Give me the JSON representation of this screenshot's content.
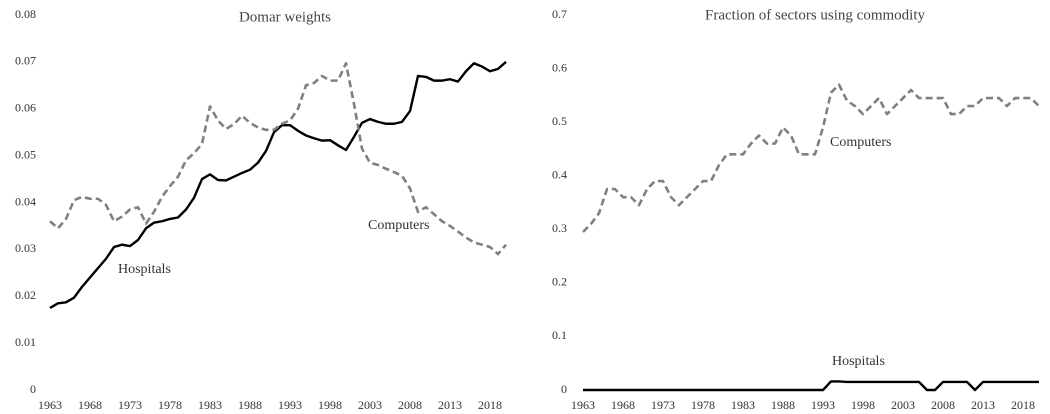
{
  "chart_data": [
    {
      "type": "line",
      "title": "Domar weights",
      "x": [
        1963,
        1964,
        1965,
        1966,
        1967,
        1968,
        1969,
        1970,
        1971,
        1972,
        1973,
        1974,
        1975,
        1976,
        1977,
        1978,
        1979,
        1980,
        1981,
        1982,
        1983,
        1984,
        1985,
        1986,
        1987,
        1988,
        1989,
        1990,
        1991,
        1992,
        1993,
        1994,
        1995,
        1996,
        1997,
        1998,
        1999,
        2000,
        2001,
        2002,
        2003,
        2004,
        2005,
        2006,
        2007,
        2008,
        2009,
        2010,
        2011,
        2012,
        2013,
        2014,
        2015,
        2016,
        2017,
        2018,
        2019,
        2020
      ],
      "xlim": [
        1963,
        2020
      ],
      "xticks": [
        1963,
        1968,
        1973,
        1978,
        1983,
        1988,
        1993,
        1998,
        2003,
        2008,
        2013,
        2018
      ],
      "ylim": [
        0,
        0.08
      ],
      "yticks": [
        0,
        0.01,
        0.02,
        0.03,
        0.04,
        0.05,
        0.06,
        0.07,
        0.08
      ],
      "series": [
        {
          "name": "Hospitals",
          "color": "#000000",
          "dashed": false,
          "values": [
            0.0175,
            0.0185,
            0.0187,
            0.0197,
            0.022,
            0.024,
            0.026,
            0.028,
            0.0305,
            0.031,
            0.0307,
            0.032,
            0.0345,
            0.0357,
            0.036,
            0.0365,
            0.0368,
            0.0385,
            0.041,
            0.045,
            0.046,
            0.0448,
            0.0447,
            0.0455,
            0.0463,
            0.047,
            0.0485,
            0.051,
            0.055,
            0.0565,
            0.0565,
            0.0553,
            0.0543,
            0.0537,
            0.0532,
            0.0533,
            0.0522,
            0.0512,
            0.054,
            0.057,
            0.0578,
            0.0572,
            0.0568,
            0.0568,
            0.0572,
            0.0595,
            0.067,
            0.0668,
            0.066,
            0.066,
            0.0663,
            0.0658,
            0.068,
            0.0697,
            0.069,
            0.068,
            0.0685,
            0.07
          ]
        },
        {
          "name": "Computers",
          "color": "#808080",
          "dashed": true,
          "values": [
            0.036,
            0.0345,
            0.0365,
            0.0405,
            0.0412,
            0.0408,
            0.0408,
            0.0395,
            0.036,
            0.037,
            0.0385,
            0.039,
            0.0355,
            0.038,
            0.0412,
            0.0435,
            0.0455,
            0.049,
            0.0505,
            0.0525,
            0.0605,
            0.0575,
            0.0557,
            0.0567,
            0.0585,
            0.057,
            0.056,
            0.0555,
            0.0555,
            0.0568,
            0.0575,
            0.06,
            0.065,
            0.0655,
            0.067,
            0.066,
            0.066,
            0.0697,
            0.061,
            0.0515,
            0.0485,
            0.048,
            0.0472,
            0.0465,
            0.0457,
            0.043,
            0.038,
            0.039,
            0.0375,
            0.036,
            0.035,
            0.0338,
            0.0325,
            0.0315,
            0.031,
            0.0305,
            0.029,
            0.031
          ]
        }
      ]
    },
    {
      "type": "line",
      "title": "Fraction of sectors using commodity",
      "x": [
        1963,
        1964,
        1965,
        1966,
        1967,
        1968,
        1969,
        1970,
        1971,
        1972,
        1973,
        1974,
        1975,
        1976,
        1977,
        1978,
        1979,
        1980,
        1981,
        1982,
        1983,
        1984,
        1985,
        1986,
        1987,
        1988,
        1989,
        1990,
        1991,
        1992,
        1993,
        1994,
        1995,
        1996,
        1997,
        1998,
        1999,
        2000,
        2001,
        2002,
        2003,
        2004,
        2005,
        2006,
        2007,
        2008,
        2009,
        2010,
        2011,
        2012,
        2013,
        2014,
        2015,
        2016,
        2017,
        2018,
        2019,
        2020
      ],
      "xlim": [
        1963,
        2020
      ],
      "xticks": [
        1963,
        1968,
        1973,
        1978,
        1983,
        1988,
        1993,
        1998,
        2003,
        2008,
        2013,
        2018
      ],
      "ylim": [
        0,
        0.7
      ],
      "yticks": [
        0,
        0.1,
        0.2,
        0.3,
        0.4,
        0.5,
        0.6,
        0.7
      ],
      "series": [
        {
          "name": "Computers",
          "color": "#808080",
          "dashed": true,
          "values": [
            0.295,
            0.31,
            0.33,
            0.375,
            0.375,
            0.36,
            0.36,
            0.345,
            0.375,
            0.39,
            0.39,
            0.36,
            0.345,
            0.36,
            0.375,
            0.39,
            0.39,
            0.42,
            0.44,
            0.44,
            0.44,
            0.46,
            0.475,
            0.46,
            0.46,
            0.49,
            0.475,
            0.44,
            0.44,
            0.44,
            0.49,
            0.555,
            0.57,
            0.54,
            0.53,
            0.515,
            0.53,
            0.545,
            0.515,
            0.53,
            0.545,
            0.56,
            0.545,
            0.545,
            0.545,
            0.545,
            0.515,
            0.515,
            0.53,
            0.53,
            0.545,
            0.545,
            0.545,
            0.53,
            0.545,
            0.545,
            0.545,
            0.53
          ]
        },
        {
          "name": "Hospitals",
          "color": "#000000",
          "dashed": false,
          "values": [
            0,
            0,
            0,
            0,
            0,
            0,
            0,
            0,
            0,
            0,
            0,
            0,
            0,
            0,
            0,
            0,
            0,
            0,
            0,
            0,
            0,
            0,
            0,
            0,
            0,
            0,
            0,
            0,
            0,
            0,
            0,
            0.016,
            0.016,
            0.015,
            0.015,
            0.015,
            0.015,
            0.015,
            0.015,
            0.015,
            0.015,
            0.015,
            0.015,
            0,
            0,
            0.015,
            0.015,
            0.015,
            0.015,
            0,
            0.015,
            0.015,
            0.015,
            0.015,
            0.015,
            0.015,
            0.015,
            0.015
          ]
        }
      ]
    }
  ]
}
